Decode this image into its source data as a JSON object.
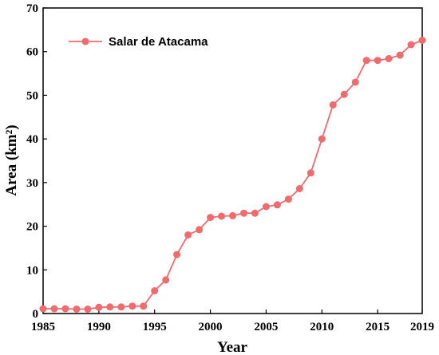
{
  "chart_data": {
    "type": "line",
    "title": "",
    "xlabel": "Year",
    "ylabel": "Area (km²)",
    "xlim": [
      1985,
      2019
    ],
    "ylim": [
      0,
      70
    ],
    "xticks": [
      1985,
      1990,
      1995,
      2000,
      2005,
      2010,
      2015,
      2019
    ],
    "yticks": [
      0,
      10,
      20,
      30,
      40,
      50,
      60,
      70
    ],
    "grid": false,
    "legend_position": "top-left",
    "series": [
      {
        "name": "Salar de Atacama",
        "color": "#f06a6e",
        "marker": "circle",
        "x": [
          1985,
          1986,
          1987,
          1988,
          1989,
          1990,
          1991,
          1992,
          1993,
          1994,
          1995,
          1996,
          1997,
          1998,
          1999,
          2000,
          2001,
          2002,
          2003,
          2004,
          2005,
          2006,
          2007,
          2008,
          2009,
          2010,
          2011,
          2012,
          2013,
          2014,
          2015,
          2016,
          2017,
          2018,
          2019
        ],
        "y": [
          1.1,
          1.1,
          1.1,
          1.0,
          1.0,
          1.4,
          1.5,
          1.5,
          1.7,
          1.7,
          5.2,
          7.7,
          13.5,
          18.0,
          19.2,
          22.0,
          22.3,
          22.4,
          23.0,
          23.0,
          24.5,
          24.9,
          26.2,
          28.6,
          32.2,
          40.0,
          47.8,
          50.2,
          53.0,
          58.0,
          58.0,
          58.4,
          59.2,
          61.6,
          62.6
        ]
      }
    ]
  }
}
